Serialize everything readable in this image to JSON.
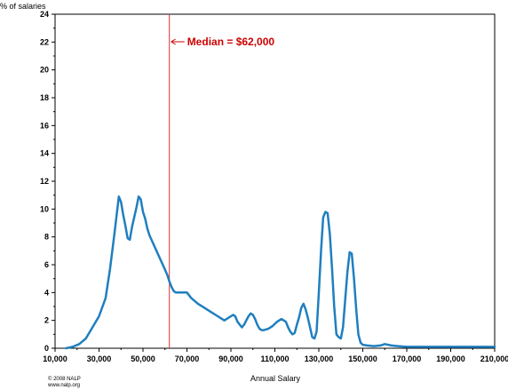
{
  "chart_data": {
    "type": "line",
    "title": "",
    "ylabel": "% of salaries",
    "xlabel": "Annual Salary",
    "xlim": [
      10000,
      210000
    ],
    "ylim": [
      0,
      24
    ],
    "x_ticks": [
      10000,
      30000,
      50000,
      70000,
      90000,
      110000,
      130000,
      150000,
      170000,
      190000,
      210000
    ],
    "x_tick_labels": [
      "10,000",
      "30,000",
      "50,000",
      "70,000",
      "90,000",
      "110,000",
      "130,000",
      "150,000",
      "170,000",
      "190,000",
      "210,000"
    ],
    "y_ticks": [
      0,
      2,
      4,
      6,
      8,
      10,
      12,
      14,
      16,
      18,
      20,
      22,
      24
    ],
    "y_tick_labels": [
      "0",
      "2",
      "4",
      "6",
      "8",
      "10",
      "12",
      "14",
      "16",
      "18",
      "20",
      "22",
      "24"
    ],
    "grid": false,
    "series": [
      {
        "color": "#1f7fbf",
        "x": [
          15000,
          18000,
          21000,
          24000,
          27000,
          30000,
          33000,
          35000,
          37000,
          39000,
          40000,
          41000,
          42000,
          43000,
          44000,
          45000,
          46000,
          47000,
          48000,
          49000,
          50000,
          51000,
          52000,
          53000,
          55000,
          57000,
          59000,
          61000,
          62000,
          63000,
          64000,
          65000,
          66000,
          70000,
          72000,
          75000,
          78000,
          81000,
          84000,
          87000,
          90000,
          91000,
          92000,
          93000,
          94000,
          95000,
          96000,
          97000,
          98000,
          99000,
          100000,
          101000,
          102000,
          103000,
          104000,
          105000,
          107000,
          109000,
          111000,
          113000,
          115000,
          116000,
          117000,
          118000,
          119000,
          120000,
          121000,
          122000,
          123000,
          124000,
          125000,
          126000,
          127000,
          128000,
          129000,
          130000,
          131000,
          132000,
          133000,
          134000,
          135000,
          136000,
          137000,
          138000,
          139000,
          140000,
          141000,
          142000,
          143000,
          144000,
          145000,
          146000,
          147000,
          148000,
          149000,
          150000,
          152000,
          155000,
          158000,
          160000,
          163000,
          166000,
          170000,
          175000,
          180000,
          185000,
          190000,
          195000,
          200000,
          205000,
          210000
        ],
        "values": [
          0.0,
          0.1,
          0.3,
          0.7,
          1.5,
          2.3,
          3.6,
          5.7,
          8.2,
          10.9,
          10.5,
          9.6,
          8.8,
          7.9,
          7.8,
          8.7,
          9.4,
          10.1,
          10.9,
          10.7,
          9.8,
          9.3,
          8.6,
          8.1,
          7.4,
          6.7,
          6.0,
          5.3,
          4.8,
          4.4,
          4.1,
          4.0,
          4.0,
          4.0,
          3.6,
          3.2,
          2.9,
          2.6,
          2.3,
          2.0,
          2.3,
          2.4,
          2.3,
          1.9,
          1.7,
          1.5,
          1.7,
          2.0,
          2.3,
          2.5,
          2.4,
          2.1,
          1.7,
          1.4,
          1.3,
          1.3,
          1.4,
          1.6,
          1.9,
          2.1,
          1.9,
          1.5,
          1.2,
          1.0,
          1.1,
          1.7,
          2.2,
          2.9,
          3.2,
          2.8,
          2.2,
          1.5,
          0.8,
          0.7,
          1.2,
          4.0,
          7.0,
          9.4,
          9.8,
          9.7,
          8.2,
          5.7,
          3.0,
          1.0,
          0.8,
          0.7,
          1.5,
          3.5,
          5.5,
          6.9,
          6.8,
          5.0,
          2.8,
          1.0,
          0.4,
          0.25,
          0.2,
          0.15,
          0.2,
          0.3,
          0.2,
          0.15,
          0.1,
          0.1,
          0.1,
          0.1,
          0.1,
          0.1,
          0.1,
          0.1,
          0.1
        ]
      }
    ],
    "annotations": [
      {
        "type": "vline",
        "x": 62000,
        "color": "#e03030",
        "text": "Median = $62,000",
        "text_color": "#cc0000"
      }
    ]
  },
  "footer": {
    "copyright": "© 2008 NALP",
    "website": "www.nalp.org"
  }
}
